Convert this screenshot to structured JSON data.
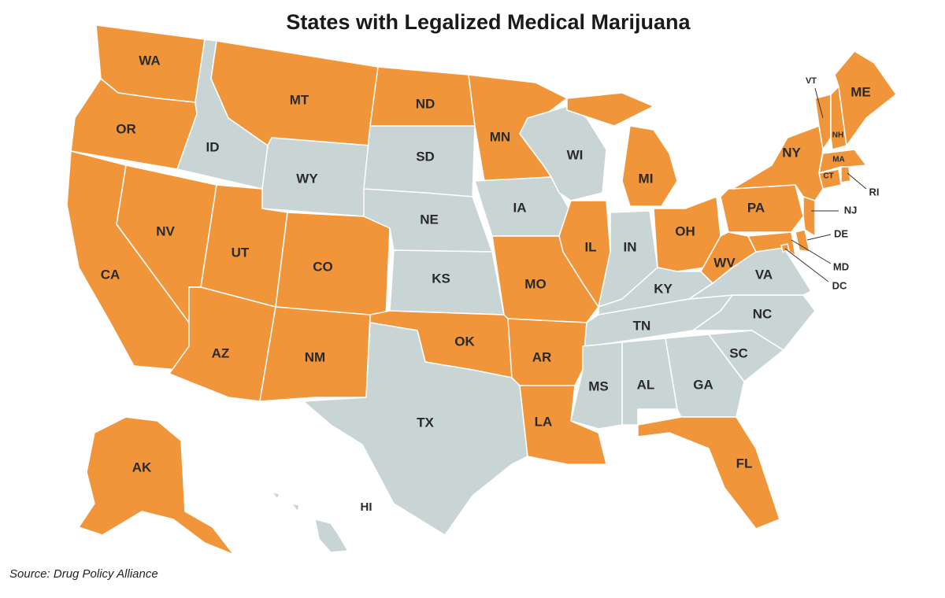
{
  "title": "States with Legalized Medical Marijuana",
  "source": "Source: Drug Policy Alliance",
  "colors": {
    "legal": "#f0953a",
    "not_legal": "#c9d4d5"
  },
  "states": [
    {
      "label": "WA",
      "legal": true
    },
    {
      "label": "OR",
      "legal": true
    },
    {
      "label": "CA",
      "legal": true
    },
    {
      "label": "NV",
      "legal": true
    },
    {
      "label": "ID",
      "legal": false
    },
    {
      "label": "MT",
      "legal": true
    },
    {
      "label": "WY",
      "legal": false
    },
    {
      "label": "UT",
      "legal": true
    },
    {
      "label": "CO",
      "legal": true
    },
    {
      "label": "AZ",
      "legal": true
    },
    {
      "label": "NM",
      "legal": true
    },
    {
      "label": "ND",
      "legal": true
    },
    {
      "label": "SD",
      "legal": false
    },
    {
      "label": "NE",
      "legal": false
    },
    {
      "label": "KS",
      "legal": false
    },
    {
      "label": "OK",
      "legal": true
    },
    {
      "label": "TX",
      "legal": false
    },
    {
      "label": "MN",
      "legal": true
    },
    {
      "label": "IA",
      "legal": false
    },
    {
      "label": "MO",
      "legal": true
    },
    {
      "label": "AR",
      "legal": true
    },
    {
      "label": "LA",
      "legal": true
    },
    {
      "label": "WI",
      "legal": false
    },
    {
      "label": "IL",
      "legal": true
    },
    {
      "label": "MI",
      "legal": true
    },
    {
      "label": "IN",
      "legal": false
    },
    {
      "label": "OH",
      "legal": true
    },
    {
      "label": "KY",
      "legal": false
    },
    {
      "label": "TN",
      "legal": false
    },
    {
      "label": "MS",
      "legal": false
    },
    {
      "label": "AL",
      "legal": false
    },
    {
      "label": "GA",
      "legal": false
    },
    {
      "label": "FL",
      "legal": true
    },
    {
      "label": "SC",
      "legal": false
    },
    {
      "label": "NC",
      "legal": false
    },
    {
      "label": "VA",
      "legal": false
    },
    {
      "label": "WV",
      "legal": true
    },
    {
      "label": "PA",
      "legal": true
    },
    {
      "label": "NY",
      "legal": true
    },
    {
      "label": "MD",
      "legal": true
    },
    {
      "label": "DE",
      "legal": true
    },
    {
      "label": "DC",
      "legal": true
    },
    {
      "label": "NJ",
      "legal": true
    },
    {
      "label": "CT",
      "legal": true
    },
    {
      "label": "RI",
      "legal": true
    },
    {
      "label": "MA",
      "legal": true
    },
    {
      "label": "VT",
      "legal": true
    },
    {
      "label": "NH",
      "legal": true
    },
    {
      "label": "ME",
      "legal": true
    },
    {
      "label": "AK",
      "legal": true
    },
    {
      "label": "HI",
      "legal": false
    }
  ]
}
